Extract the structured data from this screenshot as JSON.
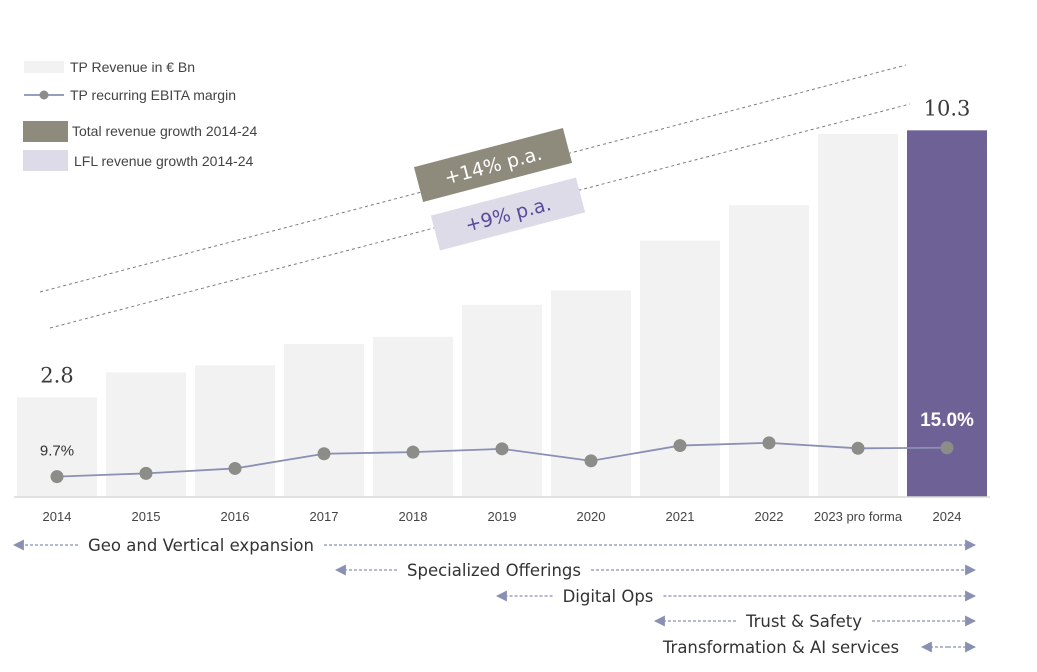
{
  "colors": {
    "bar": "#f2f2f2",
    "bar_highlight": "#6e6196",
    "line": "#8a90b4",
    "marker": "#8c8c88",
    "total_growth": "#8f8b7c",
    "lfl_growth": "#dcdbe7",
    "lfl_text": "#5a4a9a",
    "arrow": "#8a90b4"
  },
  "legend": [
    {
      "label": "TP Revenue in € Bn",
      "symbol": "bar"
    },
    {
      "label": "TP recurring EBITA margin",
      "symbol": "line"
    },
    {
      "label": "Total revenue growth 2014-24",
      "symbol": "total"
    },
    {
      "label": "LFL revenue growth 2014-24",
      "symbol": "lfl"
    }
  ],
  "chart_data": {
    "type": "bar",
    "categories": [
      "2014",
      "2015",
      "2016",
      "2017",
      "2018",
      "2019",
      "2020",
      "2021",
      "2022",
      "2023 pro forma",
      "2024"
    ],
    "series": [
      {
        "name": "TP Revenue in € Bn",
        "type": "bar",
        "values": [
          2.8,
          3.5,
          3.7,
          4.3,
          4.5,
          5.4,
          5.8,
          7.2,
          8.2,
          10.2,
          10.3
        ]
      },
      {
        "name": "TP recurring EBITA margin",
        "type": "line",
        "values": [
          9.7,
          10.3,
          11.2,
          13.9,
          14.2,
          14.8,
          12.6,
          15.4,
          15.9,
          14.9,
          15.0
        ]
      }
    ],
    "data_labels": [
      {
        "series": 0,
        "index": 0,
        "text": "2.8"
      },
      {
        "series": 0,
        "index": 10,
        "text": "10.3"
      },
      {
        "series": 1,
        "index": 0,
        "text": "9.7%"
      },
      {
        "series": 1,
        "index": 10,
        "text": "15.0%"
      }
    ],
    "highlight_index": 10,
    "growth_annotations": [
      {
        "text": "+14% p.a.",
        "kind": "total"
      },
      {
        "text": "+9% p.a.",
        "kind": "lfl"
      }
    ],
    "phases": [
      {
        "label": "Geo and Vertical expansion",
        "start": "2014",
        "end": "2024"
      },
      {
        "label": "Specialized Offerings",
        "start": "2017",
        "end": "2024"
      },
      {
        "label": "Digital Ops",
        "start": "2019",
        "end": "2024"
      },
      {
        "label": "Trust & Safety",
        "start": "2021",
        "end": "2024"
      },
      {
        "label": "Transformation  & AI services",
        "start": "2023 pro forma",
        "end": "2024"
      }
    ],
    "grid": false,
    "legend_position": "top-left"
  }
}
